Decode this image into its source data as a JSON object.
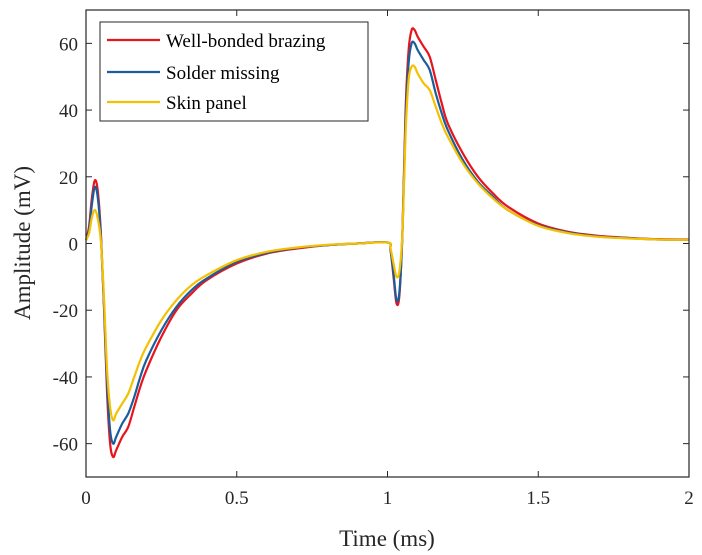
{
  "chart_data": {
    "type": "line",
    "title": "",
    "xlabel": "Time (ms)",
    "ylabel": "Amplitude (mV)",
    "xlim": [
      0,
      2
    ],
    "ylim": [
      -70,
      70
    ],
    "xticks": [
      0,
      0.5,
      1,
      1.5,
      2
    ],
    "xtick_labels": [
      "0",
      "0.5",
      "1",
      "1.5",
      "2"
    ],
    "yticks": [
      -60,
      -40,
      -20,
      0,
      20,
      40,
      60
    ],
    "ytick_labels": [
      "-60",
      "-40",
      "-20",
      "0",
      "20",
      "40",
      "60"
    ],
    "grid": false,
    "legend_position": "top-left",
    "series": [
      {
        "name": "Well-bonded brazing",
        "color": "#e8141c",
        "x": [
          0,
          0.01,
          0.02,
          0.03,
          0.04,
          0.05,
          0.06,
          0.07,
          0.08,
          0.09,
          0.1,
          0.12,
          0.14,
          0.16,
          0.18,
          0.2,
          0.25,
          0.3,
          0.35,
          0.4,
          0.5,
          0.6,
          0.7,
          0.8,
          0.9,
          1.0,
          1.01,
          1.02,
          1.03,
          1.04,
          1.05,
          1.06,
          1.07,
          1.08,
          1.09,
          1.1,
          1.12,
          1.14,
          1.16,
          1.18,
          1.2,
          1.25,
          1.3,
          1.35,
          1.4,
          1.5,
          1.6,
          1.7,
          1.8,
          1.9,
          2.0
        ],
        "y": [
          1,
          5,
          14,
          19,
          15,
          2,
          -20,
          -45,
          -60,
          -64,
          -62,
          -58,
          -55,
          -49,
          -43,
          -38,
          -28,
          -20,
          -15,
          -11,
          -6,
          -3,
          -1.5,
          -0.5,
          0,
          0.3,
          -2,
          -10,
          -18,
          -15,
          5,
          40,
          58,
          64,
          64,
          62,
          59,
          56,
          49,
          42,
          36,
          27,
          20,
          15,
          11,
          6,
          3.5,
          2.3,
          1.7,
          1.3,
          1.2
        ]
      },
      {
        "name": "Solder missing",
        "color": "#1a5d9a",
        "x": [
          0,
          0.01,
          0.02,
          0.03,
          0.04,
          0.05,
          0.06,
          0.07,
          0.08,
          0.09,
          0.1,
          0.12,
          0.14,
          0.16,
          0.18,
          0.2,
          0.25,
          0.3,
          0.35,
          0.4,
          0.5,
          0.6,
          0.7,
          0.8,
          0.9,
          1.0,
          1.01,
          1.02,
          1.03,
          1.04,
          1.05,
          1.06,
          1.07,
          1.08,
          1.09,
          1.1,
          1.12,
          1.14,
          1.16,
          1.18,
          1.2,
          1.25,
          1.3,
          1.35,
          1.4,
          1.5,
          1.6,
          1.7,
          1.8,
          1.9,
          2.0
        ],
        "y": [
          1,
          4,
          12,
          17,
          13,
          1,
          -19,
          -42,
          -56,
          -60,
          -58,
          -54,
          -51,
          -46,
          -40,
          -35,
          -26,
          -19,
          -14,
          -10.5,
          -5.5,
          -2.8,
          -1.3,
          -0.5,
          0,
          0.3,
          -2,
          -9,
          -17,
          -14,
          4,
          37,
          54,
          60,
          60,
          58,
          55,
          52,
          45,
          39,
          34,
          25,
          18.5,
          14,
          10,
          5.5,
          3.3,
          2.1,
          1.6,
          1.2,
          1.1
        ]
      },
      {
        "name": "Skin panel",
        "color": "#f5c000",
        "x": [
          0,
          0.01,
          0.02,
          0.03,
          0.04,
          0.05,
          0.06,
          0.07,
          0.08,
          0.09,
          0.1,
          0.12,
          0.14,
          0.16,
          0.18,
          0.2,
          0.25,
          0.3,
          0.35,
          0.4,
          0.5,
          0.6,
          0.7,
          0.8,
          0.9,
          1.0,
          1.01,
          1.02,
          1.03,
          1.04,
          1.05,
          1.06,
          1.07,
          1.08,
          1.09,
          1.1,
          1.12,
          1.14,
          1.16,
          1.18,
          1.2,
          1.25,
          1.3,
          1.35,
          1.4,
          1.5,
          1.6,
          1.7,
          1.8,
          1.9,
          2.0
        ],
        "y": [
          1,
          3,
          8,
          10,
          7,
          0,
          -17,
          -38,
          -49,
          -53,
          -51,
          -48,
          -45,
          -40,
          -35,
          -31,
          -23,
          -17,
          -12.5,
          -9.5,
          -5,
          -2.5,
          -1.2,
          -0.4,
          0,
          0.3,
          -1.5,
          -6,
          -10,
          -8,
          4,
          33,
          49,
          53,
          53,
          51,
          48,
          46,
          41,
          36,
          32,
          24,
          18,
          13.5,
          10,
          5.3,
          3.1,
          2,
          1.5,
          1.2,
          1.1
        ]
      }
    ]
  }
}
